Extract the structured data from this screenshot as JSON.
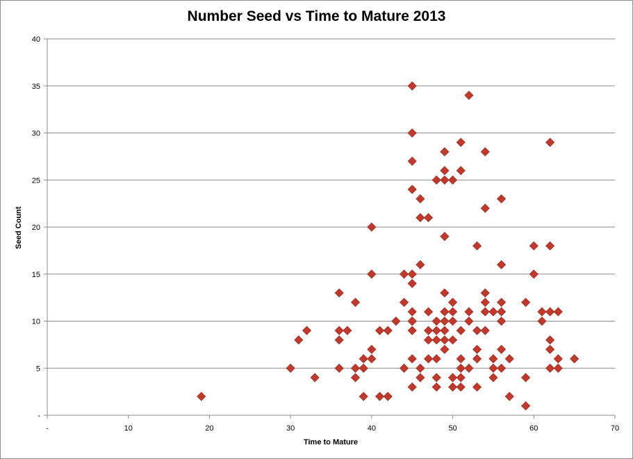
{
  "chart_data": {
    "type": "scatter",
    "title": "Number Seed vs Time to Mature 2013",
    "xlabel": "Time to Mature",
    "ylabel": "Seed Count",
    "xlim": [
      0,
      70
    ],
    "ylim": [
      0,
      40
    ],
    "x_ticks": [
      "-",
      "10",
      "20",
      "30",
      "40",
      "50",
      "60",
      "70"
    ],
    "y_ticks": [
      "-",
      "5",
      "10",
      "15",
      "20",
      "25",
      "30",
      "35",
      "40"
    ],
    "grid": "horizontal",
    "legend": "none",
    "marker": "diamond",
    "marker_color": "#c0392b",
    "points": [
      [
        19,
        2
      ],
      [
        30,
        5
      ],
      [
        31,
        8
      ],
      [
        32,
        9
      ],
      [
        33,
        4
      ],
      [
        36,
        13
      ],
      [
        36,
        9
      ],
      [
        36,
        8
      ],
      [
        36,
        5
      ],
      [
        37,
        9
      ],
      [
        38,
        12
      ],
      [
        38,
        5
      ],
      [
        38,
        4
      ],
      [
        39,
        6
      ],
      [
        39,
        5
      ],
      [
        39,
        2
      ],
      [
        40,
        20
      ],
      [
        40,
        15
      ],
      [
        40,
        7
      ],
      [
        40,
        6
      ],
      [
        41,
        9
      ],
      [
        41,
        2
      ],
      [
        42,
        9
      ],
      [
        42,
        2
      ],
      [
        43,
        10
      ],
      [
        44,
        15
      ],
      [
        44,
        12
      ],
      [
        44,
        5
      ],
      [
        45,
        35
      ],
      [
        45,
        30
      ],
      [
        45,
        27
      ],
      [
        45,
        24
      ],
      [
        45,
        15
      ],
      [
        45,
        14
      ],
      [
        45,
        11
      ],
      [
        45,
        10
      ],
      [
        45,
        10
      ],
      [
        45,
        9
      ],
      [
        45,
        6
      ],
      [
        45,
        3
      ],
      [
        46,
        23
      ],
      [
        46,
        21
      ],
      [
        46,
        16
      ],
      [
        46,
        5
      ],
      [
        46,
        4
      ],
      [
        47,
        21
      ],
      [
        47,
        11
      ],
      [
        47,
        9
      ],
      [
        47,
        8
      ],
      [
        47,
        6
      ],
      [
        48,
        25
      ],
      [
        48,
        10
      ],
      [
        48,
        9
      ],
      [
        48,
        8
      ],
      [
        48,
        6
      ],
      [
        48,
        4
      ],
      [
        48,
        3
      ],
      [
        49,
        28
      ],
      [
        49,
        26
      ],
      [
        49,
        25
      ],
      [
        49,
        19
      ],
      [
        49,
        13
      ],
      [
        49,
        11
      ],
      [
        49,
        10
      ],
      [
        49,
        9
      ],
      [
        49,
        8
      ],
      [
        49,
        7
      ],
      [
        50,
        25
      ],
      [
        50,
        12
      ],
      [
        50,
        11
      ],
      [
        50,
        10
      ],
      [
        50,
        8
      ],
      [
        50,
        4
      ],
      [
        50,
        3
      ],
      [
        51,
        29
      ],
      [
        51,
        26
      ],
      [
        51,
        9
      ],
      [
        51,
        6
      ],
      [
        51,
        5
      ],
      [
        51,
        4
      ],
      [
        51,
        3
      ],
      [
        52,
        34
      ],
      [
        52,
        11
      ],
      [
        52,
        10
      ],
      [
        52,
        5
      ],
      [
        53,
        18
      ],
      [
        53,
        9
      ],
      [
        53,
        7
      ],
      [
        53,
        6
      ],
      [
        53,
        3
      ],
      [
        54,
        28
      ],
      [
        54,
        22
      ],
      [
        54,
        13
      ],
      [
        54,
        12
      ],
      [
        54,
        11
      ],
      [
        54,
        9
      ],
      [
        55,
        11
      ],
      [
        55,
        6
      ],
      [
        55,
        5
      ],
      [
        55,
        4
      ],
      [
        56,
        23
      ],
      [
        56,
        16
      ],
      [
        56,
        12
      ],
      [
        56,
        11
      ],
      [
        56,
        10
      ],
      [
        56,
        7
      ],
      [
        56,
        5
      ],
      [
        57,
        6
      ],
      [
        57,
        2
      ],
      [
        59,
        12
      ],
      [
        59,
        4
      ],
      [
        59,
        1
      ],
      [
        60,
        18
      ],
      [
        60,
        15
      ],
      [
        61,
        11
      ],
      [
        61,
        10
      ],
      [
        62,
        29
      ],
      [
        62,
        18
      ],
      [
        62,
        11
      ],
      [
        62,
        8
      ],
      [
        62,
        7
      ],
      [
        62,
        5
      ],
      [
        63,
        11
      ],
      [
        63,
        6
      ],
      [
        63,
        5
      ],
      [
        65,
        6
      ]
    ]
  }
}
